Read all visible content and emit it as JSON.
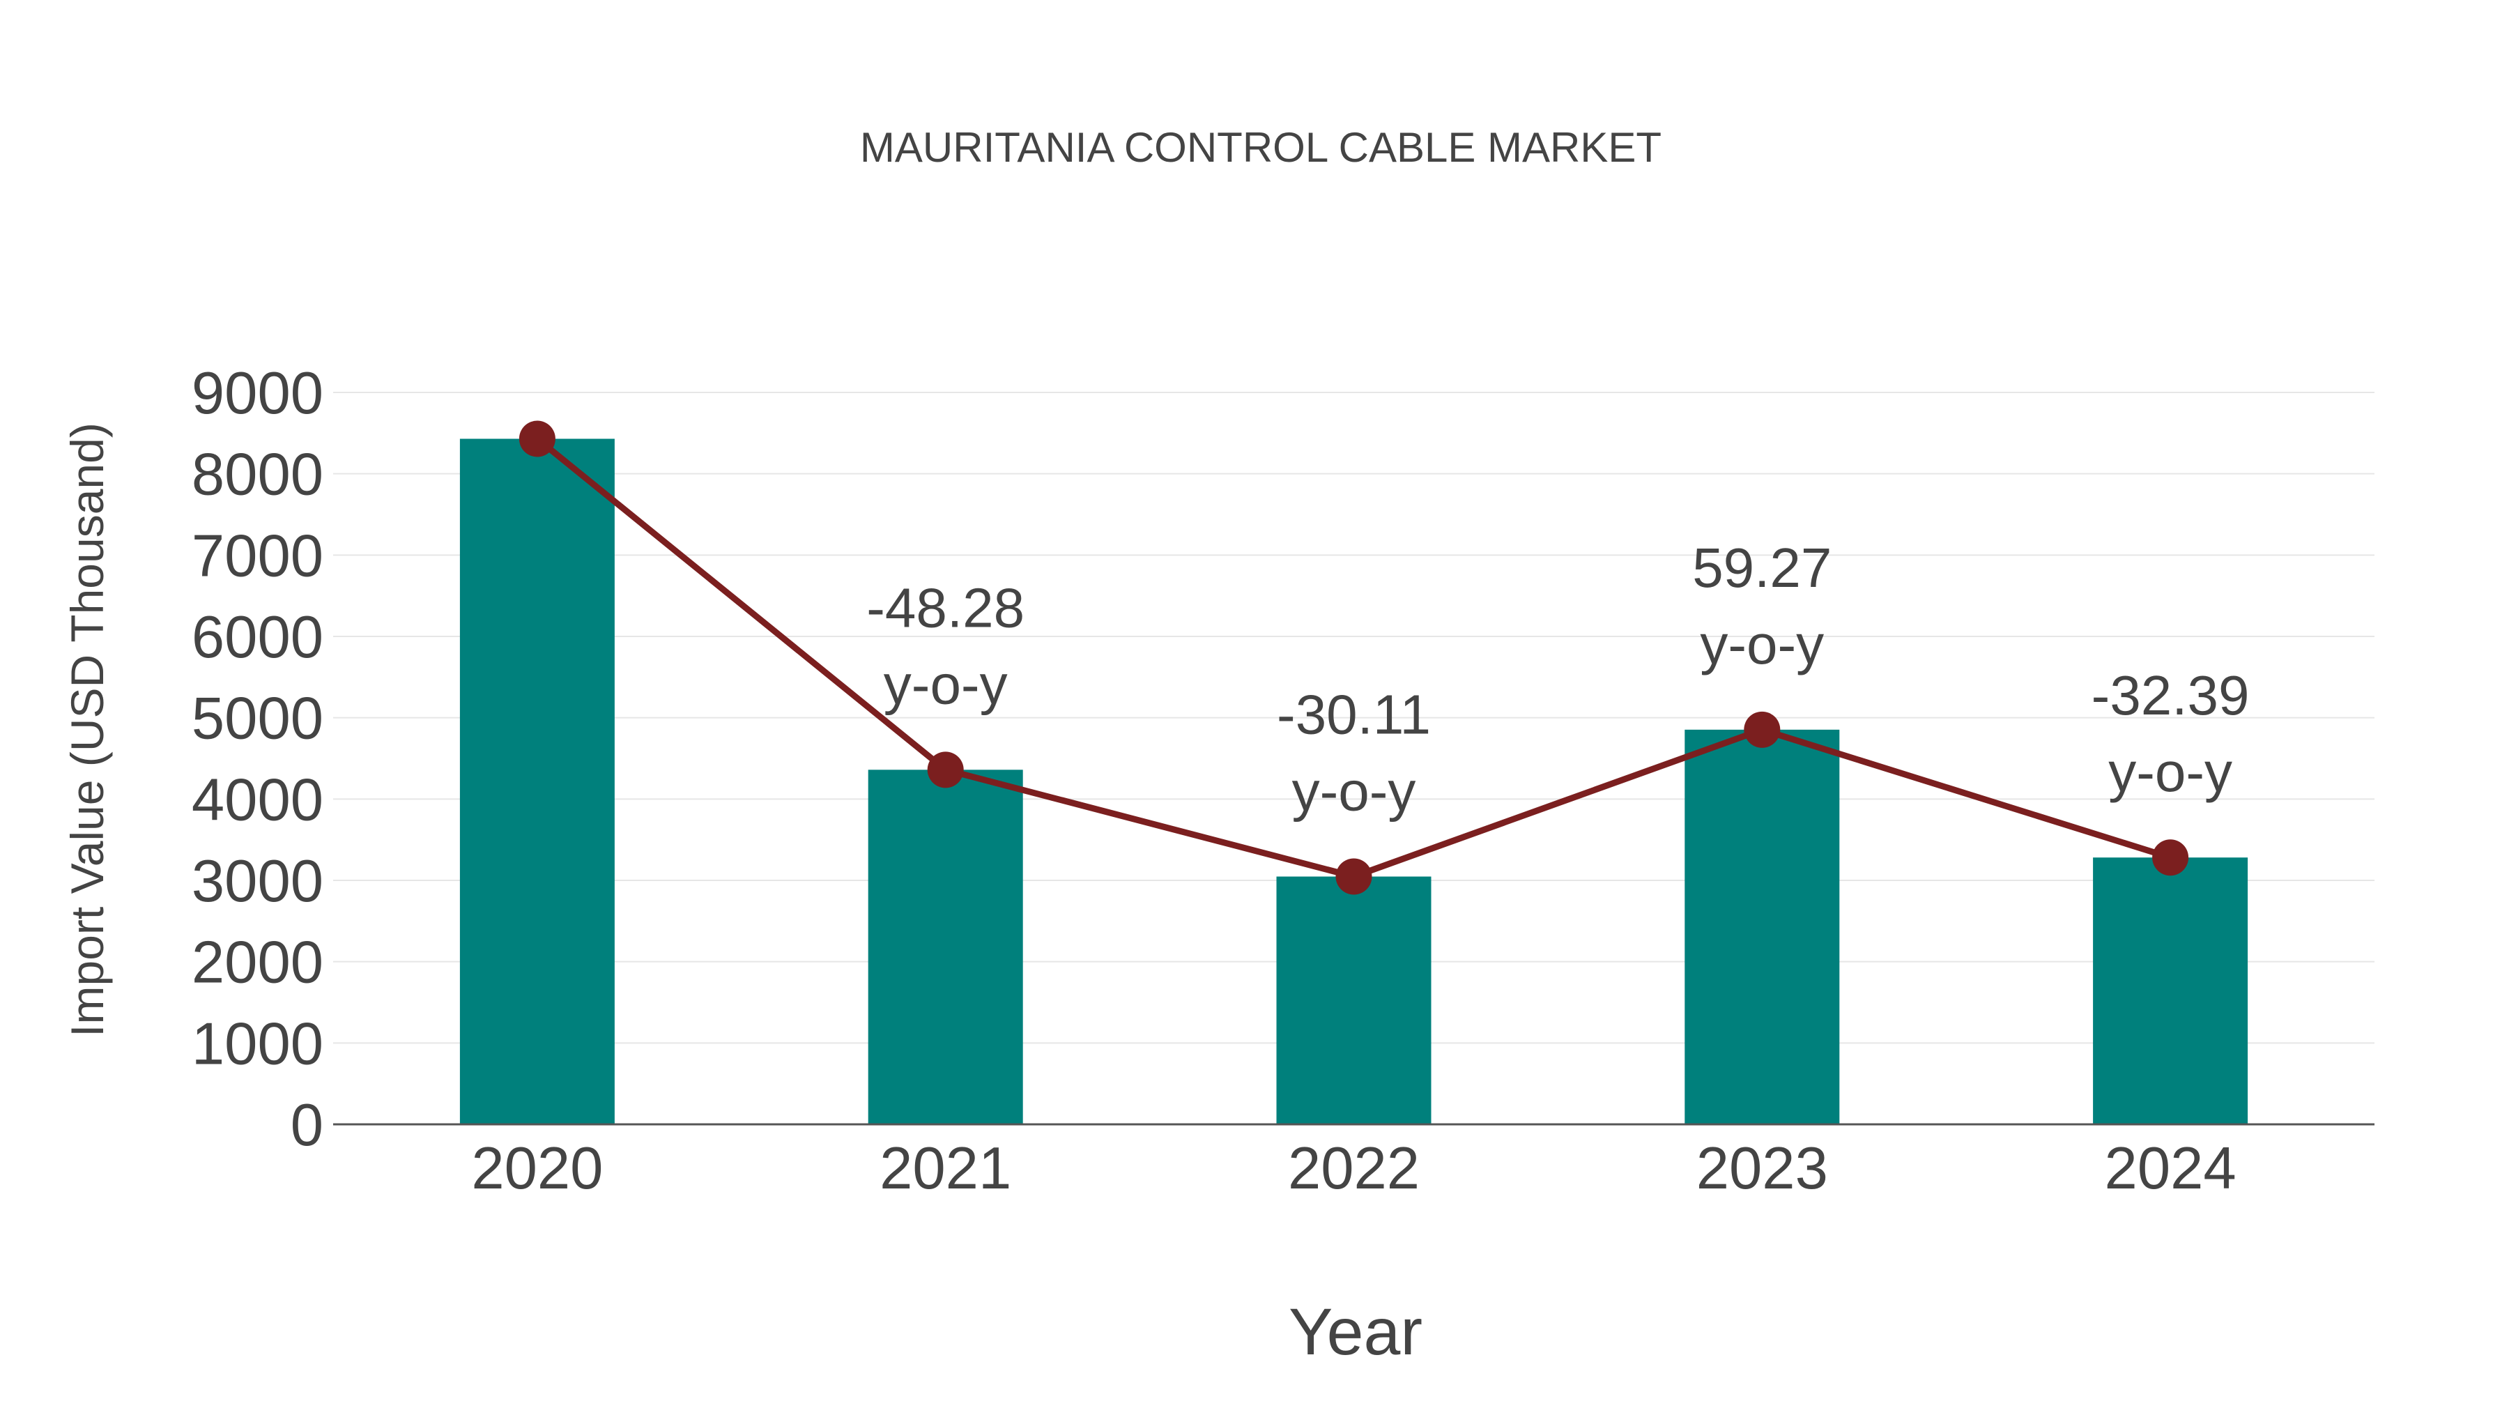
{
  "chart_data": {
    "type": "bar",
    "title": "MAURITANIA CONTROL CABLE MARKET",
    "xlabel": "Year",
    "ylabel": "Import Value (USD Thousand)",
    "categories": [
      "2020",
      "2021",
      "2022",
      "2023",
      "2024"
    ],
    "values": [
      8430,
      4360,
      3047,
      4853,
      3281
    ],
    "ylim": [
      0,
      9000
    ],
    "yticks": [
      "0",
      "1000",
      "2000",
      "3000",
      "4000",
      "5000",
      "6000",
      "7000",
      "8000",
      "9000"
    ],
    "grid": true,
    "line_series": {
      "name": "Import Value",
      "values": [
        8430,
        4360,
        3047,
        4853,
        3281
      ]
    },
    "annotations": [
      {
        "category": "2021",
        "value": "-48.28",
        "suffix": "y-o-y"
      },
      {
        "category": "2022",
        "value": "-30.11",
        "suffix": "y-o-y"
      },
      {
        "category": "2023",
        "value": "59.27",
        "suffix": "y-o-y"
      },
      {
        "category": "2024",
        "value": "-32.39",
        "suffix": "y-o-y"
      }
    ],
    "colors": {
      "bar": "#00807c",
      "line": "#7b1f1f",
      "grid": "#e6e6e6",
      "axis": "#555555"
    }
  }
}
